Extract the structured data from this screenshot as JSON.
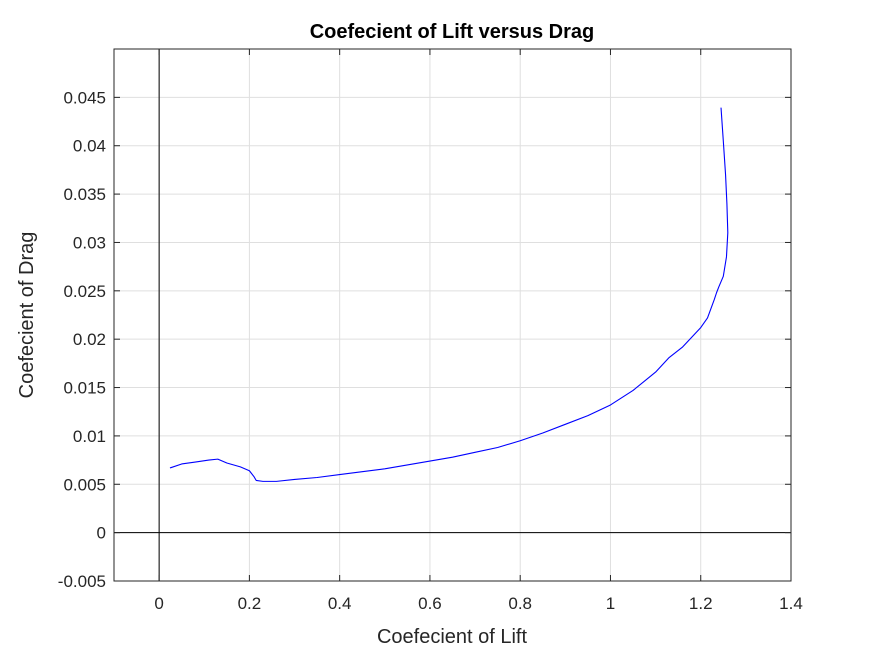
{
  "chart_data": {
    "type": "line",
    "title": "Coefecient of Lift versus Drag",
    "xlabel": "Coefecient of Lift",
    "ylabel": "Coefecient of Drag",
    "xlim": [
      -0.1,
      1.4
    ],
    "ylim": [
      -0.005,
      0.05
    ],
    "xticks": [
      0,
      0.2,
      0.4,
      0.6,
      0.8,
      1,
      1.2,
      1.4
    ],
    "xtick_labels": [
      "0",
      "0.2",
      "0.4",
      "0.6",
      "0.8",
      "1",
      "1.2",
      "1.4"
    ],
    "yticks": [
      -0.005,
      0,
      0.005,
      0.01,
      0.015,
      0.02,
      0.025,
      0.03,
      0.035,
      0.04,
      0.045
    ],
    "ytick_labels": [
      "-0.005",
      "0",
      "0.005",
      "0.01",
      "0.015",
      "0.02",
      "0.025",
      "0.03",
      "0.035",
      "0.04",
      "0.045"
    ],
    "grid": true,
    "zero_lines": true,
    "colors": {
      "series": "#0000ff",
      "grid": "#dfdfdf",
      "axes": "#262626",
      "zero_line": "#000000"
    },
    "series": [
      {
        "x": [
          0.025,
          0.05,
          0.08,
          0.11,
          0.13,
          0.15,
          0.18,
          0.2,
          0.21,
          0.215,
          0.23,
          0.26,
          0.3,
          0.35,
          0.4,
          0.45,
          0.5,
          0.55,
          0.6,
          0.65,
          0.7,
          0.75,
          0.8,
          0.85,
          0.9,
          0.95,
          1.0,
          1.05,
          1.1,
          1.13,
          1.16,
          1.18,
          1.2,
          1.215,
          1.23,
          1.235,
          1.24,
          1.25,
          1.257,
          1.26,
          1.258,
          1.255,
          1.25,
          1.245
        ],
        "y": [
          0.0067,
          0.0071,
          0.0073,
          0.0075,
          0.0076,
          0.0072,
          0.0068,
          0.0064,
          0.0058,
          0.0054,
          0.0053,
          0.0053,
          0.0055,
          0.0057,
          0.006,
          0.0063,
          0.0066,
          0.007,
          0.0074,
          0.0078,
          0.0083,
          0.0088,
          0.0095,
          0.0103,
          0.0112,
          0.0121,
          0.0132,
          0.0147,
          0.0166,
          0.0181,
          0.0192,
          0.0202,
          0.0212,
          0.0222,
          0.0241,
          0.0248,
          0.0254,
          0.0265,
          0.0285,
          0.031,
          0.034,
          0.037,
          0.0405,
          0.0439
        ]
      }
    ]
  }
}
